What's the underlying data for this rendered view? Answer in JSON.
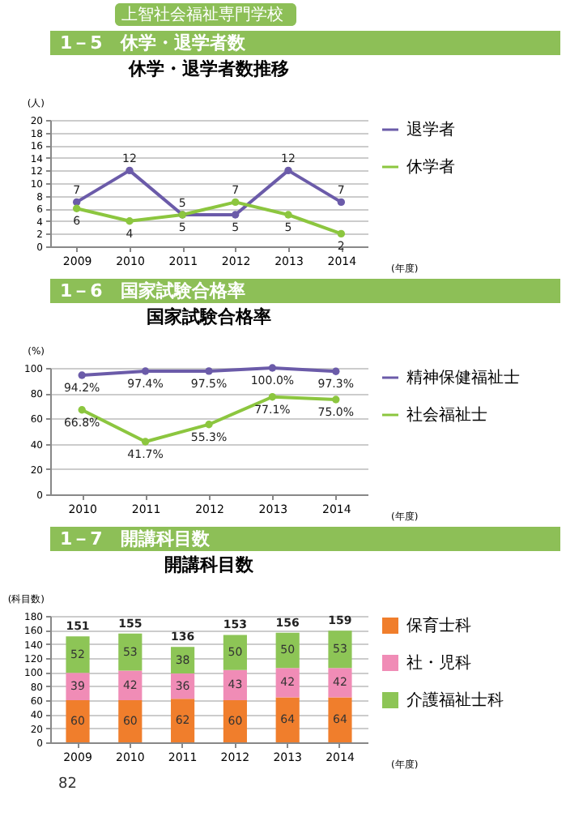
{
  "chart_data": [
    {
      "type": "line",
      "subtitle": "上智社会福祉専門学校",
      "annotations": [
        "1－5　休学・退学者数"
      ],
      "title": "休学・退学者数推移",
      "ylabel": "(人)",
      "xlabel": "(年度)",
      "categories": [
        "2009",
        "2010",
        "2011",
        "2012",
        "2013",
        "2014"
      ],
      "series": [
        {
          "name": "退学者",
          "color": "#6b5ba9",
          "values": [
            7,
            12,
            5,
            5,
            12,
            7
          ]
        },
        {
          "name": "休学者",
          "color": "#8cc63f",
          "values": [
            6,
            4,
            5,
            7,
            5,
            2
          ]
        }
      ],
      "ylim": [
        0,
        20
      ],
      "yticks": [
        0,
        2,
        4,
        6,
        8,
        10,
        12,
        14,
        16,
        18,
        20
      ],
      "grid": "y",
      "legend": "right",
      "marker": "circle",
      "data_labels": true
    },
    {
      "type": "line",
      "annotations": [
        "1－6　国家試験合格率"
      ],
      "title": "国家試験合格率",
      "ylabel": "(%)",
      "xlabel": "(年度)",
      "categories": [
        "2010",
        "2011",
        "2012",
        "2013",
        "2014"
      ],
      "series": [
        {
          "name": "精神保健福祉士",
          "color": "#6b5ba9",
          "values": [
            94.2,
            97.4,
            97.5,
            100.0,
            97.3
          ],
          "value_labels": [
            "94.2%",
            "97.4%",
            "97.5%",
            "100.0%",
            "97.3%"
          ]
        },
        {
          "name": "社会福祉士",
          "color": "#8cc63f",
          "values": [
            66.8,
            41.7,
            55.3,
            77.1,
            75.0
          ],
          "value_labels": [
            "66.8%",
            "41.7%",
            "55.3%",
            "77.1%",
            "75.0%"
          ]
        }
      ],
      "ylim": [
        0,
        100
      ],
      "yticks": [
        0,
        20,
        40,
        60,
        80,
        100
      ],
      "grid": "y",
      "legend": "right",
      "marker": "circle"
    },
    {
      "type": "bar",
      "annotations": [
        "1－7　開講科目数",
        "82"
      ],
      "title": "開講科目数",
      "ylabel": "(科目数)",
      "xlabel": "(年度)",
      "categories": [
        "2009",
        "2010",
        "2011",
        "2012",
        "2013",
        "2014"
      ],
      "stacked": true,
      "series": [
        {
          "name": "保育士科",
          "color": "#f07e2c",
          "values": [
            60,
            60,
            62,
            60,
            64,
            64
          ]
        },
        {
          "name": "社・児科",
          "color": "#f08cb6",
          "values": [
            39,
            42,
            36,
            43,
            42,
            42
          ]
        },
        {
          "name": "介護福祉士科",
          "color": "#8dc556",
          "values": [
            52,
            53,
            38,
            50,
            50,
            53
          ]
        }
      ],
      "totals": [
        "151",
        "155",
        "136",
        "153",
        "156",
        "159"
      ],
      "ylim": [
        0,
        180
      ],
      "yticks": [
        0,
        20,
        40,
        60,
        80,
        100,
        120,
        140,
        160,
        180
      ],
      "grid": "y",
      "legend": "right",
      "data_labels": true
    }
  ]
}
